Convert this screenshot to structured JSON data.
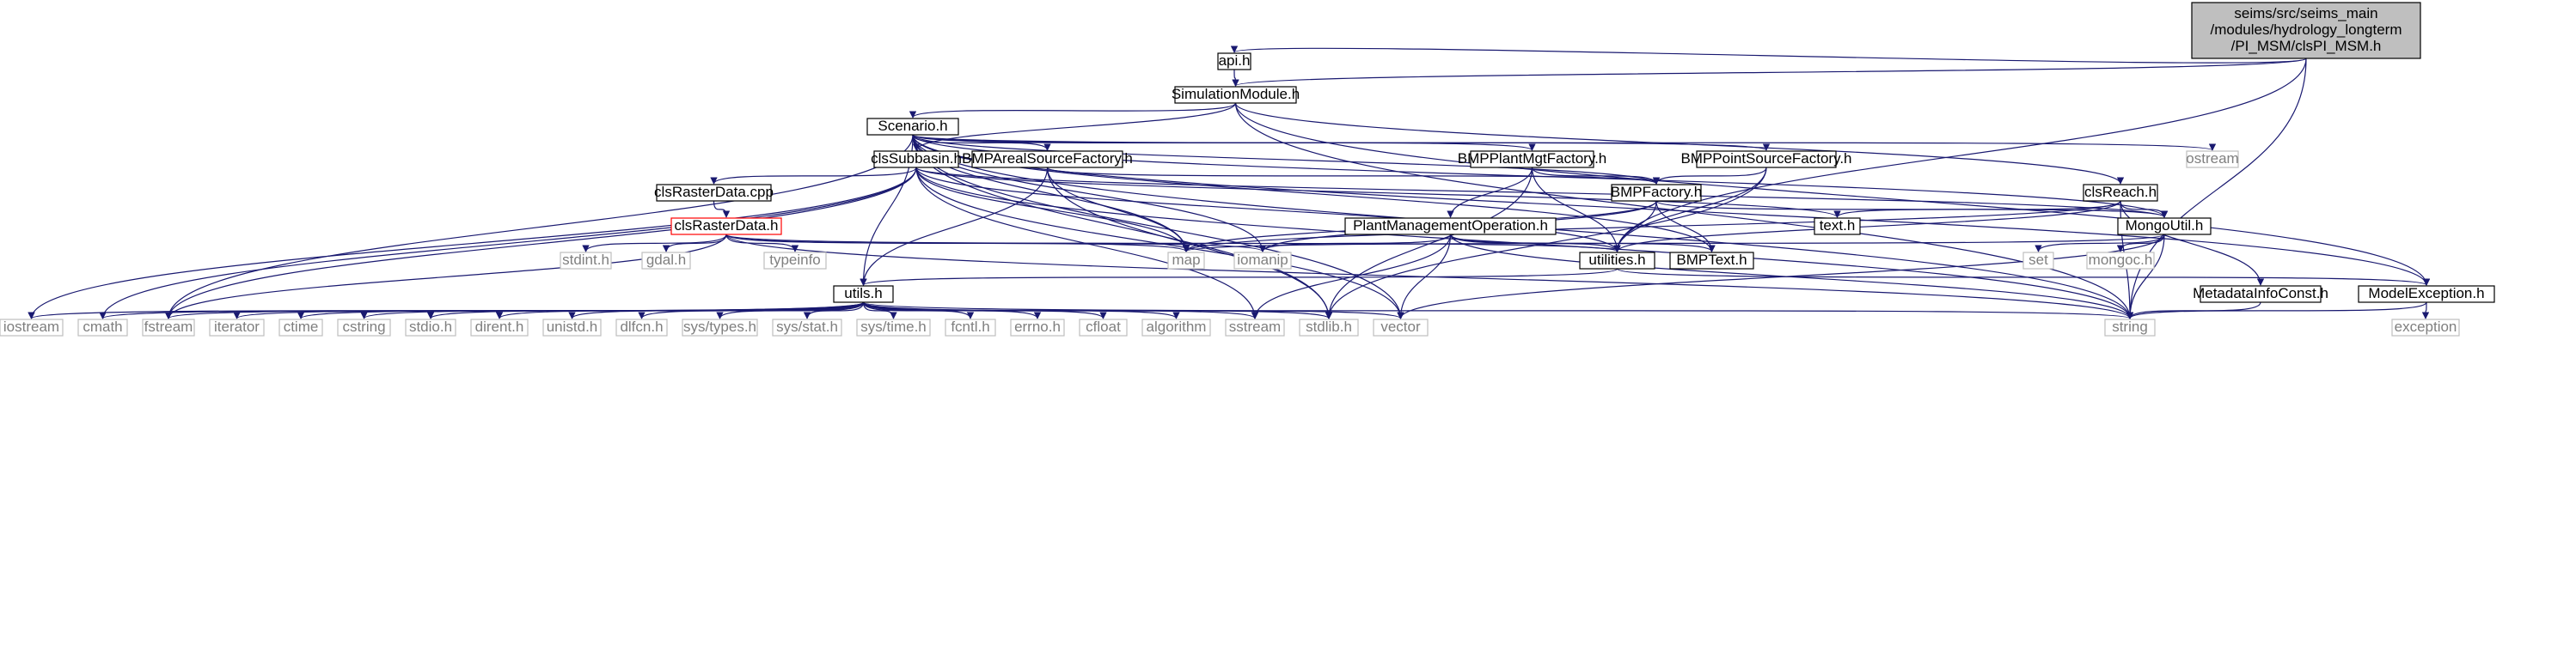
{
  "nodes": [
    {
      "id": "root",
      "lines": [
        "seims/src/seims_main",
        "/modules/hydrology_longterm",
        "/PI_MSM/clsPI_MSM.h"
      ],
      "style": "root"
    },
    {
      "id": "api",
      "lines": [
        "api.h"
      ],
      "style": "box"
    },
    {
      "id": "simmod",
      "lines": [
        "SimulationModule.h"
      ],
      "style": "box"
    },
    {
      "id": "scenario",
      "lines": [
        "Scenario.h"
      ],
      "style": "box"
    },
    {
      "id": "ostream",
      "lines": [
        "ostream"
      ],
      "style": "sys"
    },
    {
      "id": "clssubbasin",
      "lines": [
        "clsSubbasin.h"
      ],
      "style": "box"
    },
    {
      "id": "bmpareal",
      "lines": [
        "BMPArealSourceFactory.h"
      ],
      "style": "box"
    },
    {
      "id": "bmpplant",
      "lines": [
        "BMPPlantMgtFactory.h"
      ],
      "style": "box"
    },
    {
      "id": "bmppoint",
      "lines": [
        "BMPPointSourceFactory.h"
      ],
      "style": "box"
    },
    {
      "id": "clsrastercpp",
      "lines": [
        "clsRasterData.cpp"
      ],
      "style": "box"
    },
    {
      "id": "bmpfactory",
      "lines": [
        "BMPFactory.h"
      ],
      "style": "box"
    },
    {
      "id": "clsreach",
      "lines": [
        "clsReach.h"
      ],
      "style": "box"
    },
    {
      "id": "clsrasterh",
      "lines": [
        "clsRasterData.h"
      ],
      "style": "red"
    },
    {
      "id": "plantmgtop",
      "lines": [
        "PlantManagementOperation.h"
      ],
      "style": "box"
    },
    {
      "id": "texth",
      "lines": [
        "text.h"
      ],
      "style": "box"
    },
    {
      "id": "mongoutil",
      "lines": [
        "MongoUtil.h"
      ],
      "style": "box"
    },
    {
      "id": "stdint",
      "lines": [
        "stdint.h"
      ],
      "style": "sys"
    },
    {
      "id": "gdal",
      "lines": [
        "gdal.h"
      ],
      "style": "sys"
    },
    {
      "id": "typeinfo",
      "lines": [
        "typeinfo"
      ],
      "style": "sys"
    },
    {
      "id": "map",
      "lines": [
        "map"
      ],
      "style": "sys"
    },
    {
      "id": "iomanip",
      "lines": [
        "iomanip"
      ],
      "style": "sys"
    },
    {
      "id": "utilities",
      "lines": [
        "utilities.h"
      ],
      "style": "box"
    },
    {
      "id": "bmptext",
      "lines": [
        "BMPText.h"
      ],
      "style": "box"
    },
    {
      "id": "set",
      "lines": [
        "set"
      ],
      "style": "sys"
    },
    {
      "id": "mongoc",
      "lines": [
        "mongoc.h"
      ],
      "style": "sys"
    },
    {
      "id": "utils",
      "lines": [
        "utils.h"
      ],
      "style": "box"
    },
    {
      "id": "metadata",
      "lines": [
        "MetadataInfoConst.h"
      ],
      "style": "box"
    },
    {
      "id": "modelexc",
      "lines": [
        "ModelException.h"
      ],
      "style": "box"
    },
    {
      "id": "iostream",
      "lines": [
        "iostream"
      ],
      "style": "sys"
    },
    {
      "id": "cmath",
      "lines": [
        "cmath"
      ],
      "style": "sys"
    },
    {
      "id": "fstream",
      "lines": [
        "fstream"
      ],
      "style": "sys"
    },
    {
      "id": "iterator",
      "lines": [
        "iterator"
      ],
      "style": "sys"
    },
    {
      "id": "ctime",
      "lines": [
        "ctime"
      ],
      "style": "sys"
    },
    {
      "id": "cstring",
      "lines": [
        "cstring"
      ],
      "style": "sys"
    },
    {
      "id": "stdio",
      "lines": [
        "stdio.h"
      ],
      "style": "sys"
    },
    {
      "id": "dirent",
      "lines": [
        "dirent.h"
      ],
      "style": "sys"
    },
    {
      "id": "unistd",
      "lines": [
        "unistd.h"
      ],
      "style": "sys"
    },
    {
      "id": "dlfcn",
      "lines": [
        "dlfcn.h"
      ],
      "style": "sys"
    },
    {
      "id": "systypes",
      "lines": [
        "sys/types.h"
      ],
      "style": "sys"
    },
    {
      "id": "sysstat",
      "lines": [
        "sys/stat.h"
      ],
      "style": "sys"
    },
    {
      "id": "systime",
      "lines": [
        "sys/time.h"
      ],
      "style": "sys"
    },
    {
      "id": "fcntl",
      "lines": [
        "fcntl.h"
      ],
      "style": "sys"
    },
    {
      "id": "errno",
      "lines": [
        "errno.h"
      ],
      "style": "sys"
    },
    {
      "id": "cfloat",
      "lines": [
        "cfloat"
      ],
      "style": "sys"
    },
    {
      "id": "algorithm",
      "lines": [
        "algorithm"
      ],
      "style": "sys"
    },
    {
      "id": "sstream",
      "lines": [
        "sstream"
      ],
      "style": "sys"
    },
    {
      "id": "stdlib",
      "lines": [
        "stdlib.h"
      ],
      "style": "sys"
    },
    {
      "id": "vector",
      "lines": [
        "vector"
      ],
      "style": "sys"
    },
    {
      "id": "string",
      "lines": [
        "string"
      ],
      "style": "sys"
    },
    {
      "id": "exception",
      "lines": [
        "exception"
      ],
      "style": "sys"
    }
  ],
  "edges": [
    [
      "root",
      "api"
    ],
    [
      "root",
      "simmod"
    ],
    [
      "root",
      "string"
    ],
    [
      "root",
      "utilities"
    ],
    [
      "api",
      "simmod"
    ],
    [
      "simmod",
      "scenario"
    ],
    [
      "simmod",
      "clssubbasin"
    ],
    [
      "simmod",
      "clsreach"
    ],
    [
      "simmod",
      "modelexc"
    ],
    [
      "simmod",
      "string"
    ],
    [
      "scenario",
      "ostream"
    ],
    [
      "scenario",
      "bmpareal"
    ],
    [
      "scenario",
      "bmpplant"
    ],
    [
      "scenario",
      "bmppoint"
    ],
    [
      "scenario",
      "bmpfactory"
    ],
    [
      "scenario",
      "utils"
    ],
    [
      "scenario",
      "fstream"
    ],
    [
      "scenario",
      "map"
    ],
    [
      "scenario",
      "iomanip"
    ],
    [
      "scenario",
      "mongoutil"
    ],
    [
      "scenario",
      "bmptext"
    ],
    [
      "scenario",
      "vector"
    ],
    [
      "scenario",
      "string"
    ],
    [
      "scenario",
      "modelexc"
    ],
    [
      "scenario",
      "stdlib"
    ],
    [
      "clssubbasin",
      "clsrastercpp"
    ],
    [
      "clssubbasin",
      "iostream"
    ],
    [
      "clssubbasin",
      "cmath"
    ],
    [
      "clssubbasin",
      "fstream"
    ],
    [
      "clssubbasin",
      "map"
    ],
    [
      "clssubbasin",
      "texth"
    ],
    [
      "clssubbasin",
      "mongoutil"
    ],
    [
      "clssubbasin",
      "utilities"
    ],
    [
      "clssubbasin",
      "vector"
    ],
    [
      "clssubbasin",
      "sstream"
    ],
    [
      "clssubbasin",
      "string"
    ],
    [
      "bmpareal",
      "bmpfactory"
    ],
    [
      "bmpareal",
      "utils"
    ],
    [
      "bmpareal",
      "map"
    ],
    [
      "bmpareal",
      "stdlib"
    ],
    [
      "bmpplant",
      "bmpfactory"
    ],
    [
      "bmpplant",
      "plantmgtop"
    ],
    [
      "bmpplant",
      "utilities"
    ],
    [
      "bmpplant",
      "stdlib"
    ],
    [
      "bmppoint",
      "bmpfactory"
    ],
    [
      "bmppoint",
      "utilities"
    ],
    [
      "bmppoint",
      "stdlib"
    ],
    [
      "clsrastercpp",
      "clsrasterh"
    ],
    [
      "clsrasterh",
      "stdint"
    ],
    [
      "clsrasterh",
      "gdal"
    ],
    [
      "clsrasterh",
      "typeinfo"
    ],
    [
      "clsrasterh",
      "map"
    ],
    [
      "clsrasterh",
      "iomanip"
    ],
    [
      "clsrasterh",
      "utilities"
    ],
    [
      "clsrasterh",
      "fstream"
    ],
    [
      "clsrasterh",
      "string"
    ],
    [
      "bmpfactory",
      "map"
    ],
    [
      "bmpfactory",
      "iomanip"
    ],
    [
      "bmpfactory",
      "utilities"
    ],
    [
      "bmpfactory",
      "bmptext"
    ],
    [
      "bmpfactory",
      "mongoutil"
    ],
    [
      "clsreach",
      "texth"
    ],
    [
      "clsreach",
      "map"
    ],
    [
      "clsreach",
      "utilities"
    ],
    [
      "clsreach",
      "mongoutil"
    ],
    [
      "clsreach",
      "metadata"
    ],
    [
      "clsreach",
      "string"
    ],
    [
      "plantmgtop",
      "iomanip"
    ],
    [
      "plantmgtop",
      "utilities"
    ],
    [
      "plantmgtop",
      "bmptext"
    ],
    [
      "plantmgtop",
      "sstream"
    ],
    [
      "plantmgtop",
      "vector"
    ],
    [
      "plantmgtop",
      "string"
    ],
    [
      "mongoutil",
      "map"
    ],
    [
      "mongoutil",
      "set"
    ],
    [
      "mongoutil",
      "mongoc"
    ],
    [
      "mongoutil",
      "vector"
    ],
    [
      "mongoutil",
      "string"
    ],
    [
      "utilities",
      "utils"
    ],
    [
      "utilities",
      "modelexc"
    ],
    [
      "utils",
      "iostream"
    ],
    [
      "utils",
      "cmath"
    ],
    [
      "utils",
      "fstream"
    ],
    [
      "utils",
      "iterator"
    ],
    [
      "utils",
      "ctime"
    ],
    [
      "utils",
      "cstring"
    ],
    [
      "utils",
      "stdio"
    ],
    [
      "utils",
      "dirent"
    ],
    [
      "utils",
      "unistd"
    ],
    [
      "utils",
      "dlfcn"
    ],
    [
      "utils",
      "systypes"
    ],
    [
      "utils",
      "sysstat"
    ],
    [
      "utils",
      "systime"
    ],
    [
      "utils",
      "fcntl"
    ],
    [
      "utils",
      "errno"
    ],
    [
      "utils",
      "cfloat"
    ],
    [
      "utils",
      "algorithm"
    ],
    [
      "utils",
      "sstream"
    ],
    [
      "utils",
      "stdlib"
    ],
    [
      "utils",
      "vector"
    ],
    [
      "utils",
      "string"
    ],
    [
      "metadata",
      "string"
    ],
    [
      "modelexc",
      "string"
    ],
    [
      "modelexc",
      "exception"
    ]
  ],
  "colors": {
    "edge": "#191970",
    "border": "#000000",
    "root_fill": "#bfbfbf",
    "red_border": "#ff0000",
    "sys_border": "#bfbfbf",
    "sys_text": "#7f7f7f",
    "text": "#000000"
  }
}
